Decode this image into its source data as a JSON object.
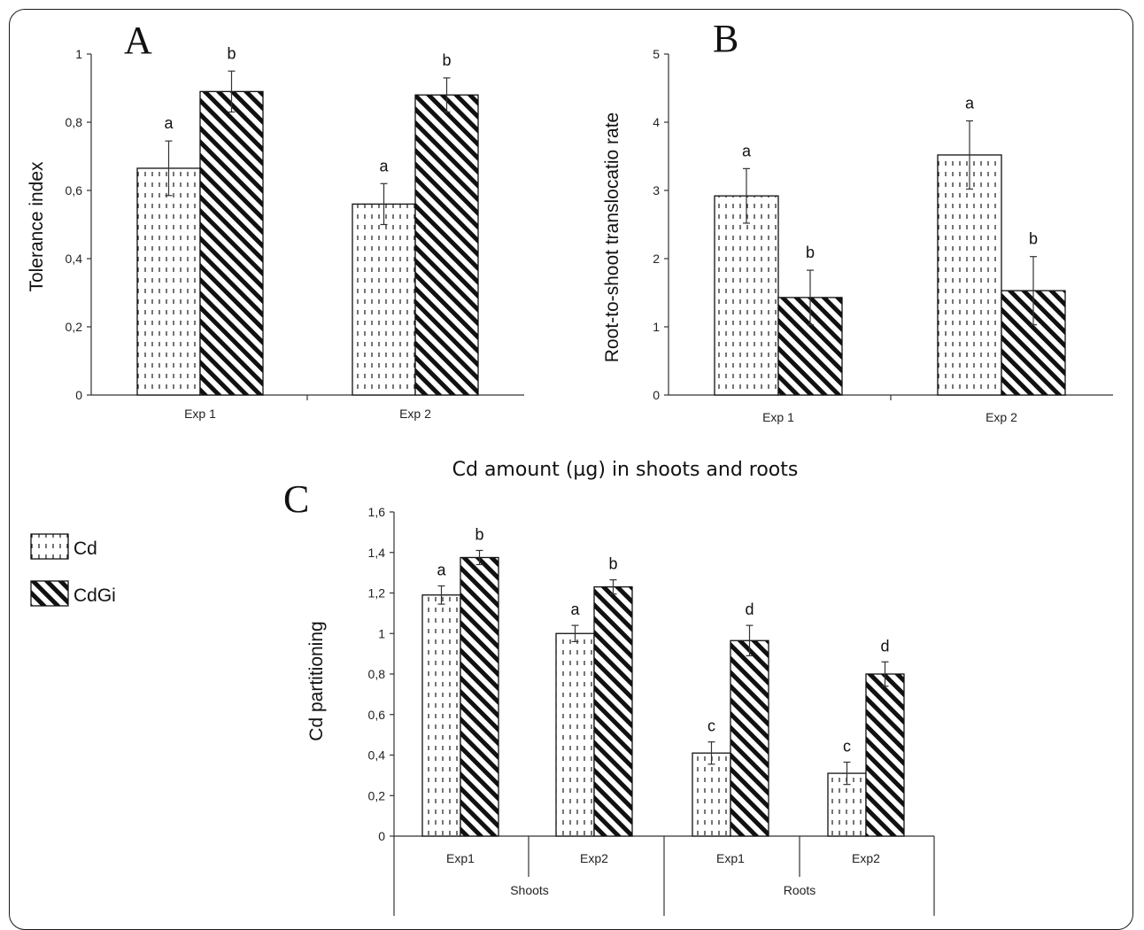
{
  "legend": {
    "items": [
      {
        "label": "Cd",
        "pattern": "dots"
      },
      {
        "label": "CdGi",
        "pattern": "hatch"
      }
    ]
  },
  "chart_data": [
    {
      "type": "bar",
      "panel": "A",
      "title": "",
      "xlabel": "",
      "ylabel": "Tolerance index",
      "categories": [
        "Exp 1",
        "Exp 2"
      ],
      "series": [
        {
          "name": "Cd",
          "values": [
            0.665,
            0.56
          ],
          "errors": [
            0.08,
            0.06
          ],
          "letters": [
            "a",
            "a"
          ]
        },
        {
          "name": "CdGi",
          "values": [
            0.89,
            0.88
          ],
          "errors": [
            0.06,
            0.05
          ],
          "letters": [
            "b",
            "b"
          ]
        }
      ],
      "ylim": [
        0,
        1
      ],
      "yticks": [
        "0",
        "0,2",
        "0,4",
        "0,6",
        "0,8",
        "1"
      ],
      "grid": false
    },
    {
      "type": "bar",
      "panel": "B",
      "title": "",
      "xlabel": "",
      "ylabel": "Root-to-shoot translocatio rate",
      "categories": [
        "Exp 1",
        "Exp 2"
      ],
      "series": [
        {
          "name": "Cd",
          "values": [
            2.92,
            3.52
          ],
          "errors": [
            0.4,
            0.5
          ],
          "letters": [
            "a",
            "a"
          ]
        },
        {
          "name": "CdGi",
          "values": [
            1.43,
            1.53
          ],
          "errors": [
            0.4,
            0.5
          ],
          "letters": [
            "b",
            "b"
          ]
        }
      ],
      "ylim": [
        0,
        5
      ],
      "yticks": [
        "0",
        "1",
        "2",
        "3",
        "4",
        "5"
      ],
      "grid": false
    },
    {
      "type": "bar",
      "panel": "C",
      "title": "Cd amount (µg) in shoots and roots",
      "xlabel": "",
      "ylabel": "Cd partitioning",
      "categories": [
        "Exp1",
        "Exp2",
        "Exp1",
        "Exp2"
      ],
      "groups": [
        {
          "label": "Shoots",
          "categories": [
            "Exp1",
            "Exp2"
          ]
        },
        {
          "label": "Roots",
          "categories": [
            "Exp1",
            "Exp2"
          ]
        }
      ],
      "series": [
        {
          "name": "Cd",
          "values": [
            1.19,
            1.0,
            0.41,
            0.31
          ],
          "errors": [
            0.045,
            0.04,
            0.055,
            0.055
          ],
          "letters": [
            "a",
            "a",
            "c",
            "c"
          ]
        },
        {
          "name": "CdGi",
          "values": [
            1.375,
            1.23,
            0.965,
            0.8
          ],
          "errors": [
            0.035,
            0.035,
            0.075,
            0.06
          ],
          "letters": [
            "b",
            "b",
            "d",
            "d"
          ]
        }
      ],
      "ylim": [
        0,
        1.6
      ],
      "yticks": [
        "0",
        "0,2",
        "0,4",
        "0,6",
        "0,8",
        "1",
        "1,2",
        "1,4",
        "1,6"
      ],
      "grid": false
    }
  ]
}
